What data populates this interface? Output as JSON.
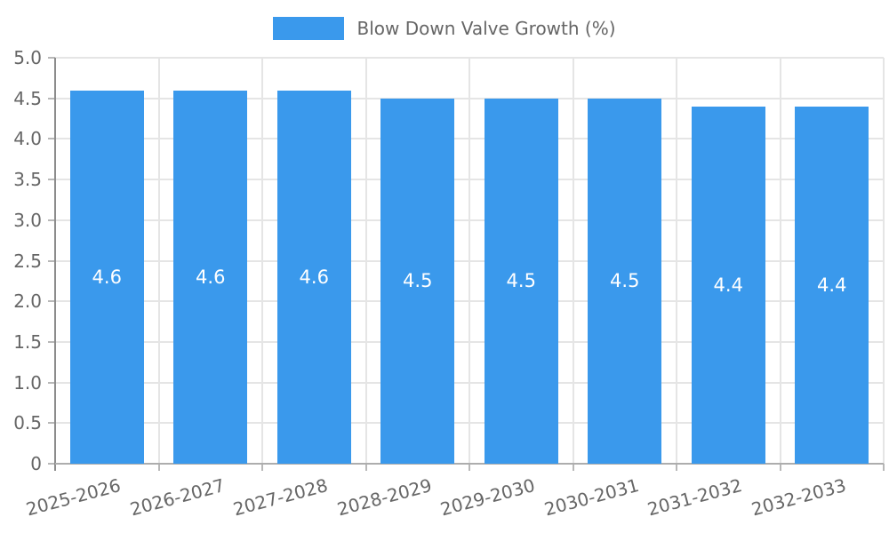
{
  "chart_data": {
    "type": "bar",
    "title": "",
    "legend": {
      "label": "Blow Down Valve Growth (%)",
      "position": "top"
    },
    "categories": [
      "2025-2026",
      "2026-2027",
      "2027-2028",
      "2028-2029",
      "2029-2030",
      "2030-2031",
      "2031-2032",
      "2032-2033"
    ],
    "series": [
      {
        "name": "Blow Down Valve Growth (%)",
        "values": [
          4.6,
          4.6,
          4.6,
          4.5,
          4.5,
          4.5,
          4.4,
          4.4
        ]
      }
    ],
    "bar_labels": [
      "4.6",
      "4.6",
      "4.6",
      "4.5",
      "4.5",
      "4.5",
      "4.4",
      "4.4"
    ],
    "ylim": [
      0,
      5
    ],
    "ytick_step": 0.5,
    "ytick_labels": [
      "0",
      "0.5",
      "1.0",
      "1.5",
      "2.0",
      "2.5",
      "3.0",
      "3.5",
      "4.0",
      "4.5",
      "5.0"
    ],
    "grid": true,
    "x_label_rotation_deg": -15,
    "colors": {
      "bar": "#3a99ec",
      "bar_label": "#ffffff",
      "grid": "#e5e5e5",
      "tick": "#b8b8b8",
      "axis_y_line": "#8c8c8c",
      "axis_x_line": "#adadad",
      "text": "#666666",
      "background": "#ffffff"
    }
  }
}
